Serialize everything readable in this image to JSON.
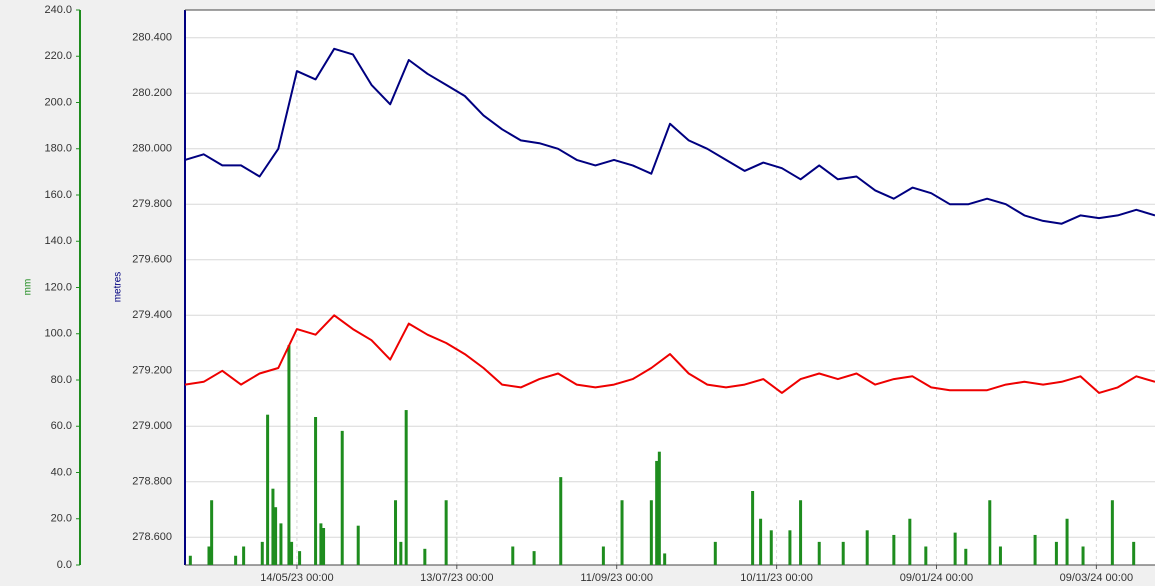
{
  "chart_data": {
    "type": "combo",
    "ylabel": "mm",
    "y2label": "metres",
    "ylim": [
      0,
      240
    ],
    "yticks": [
      {
        "value": 0,
        "label": "0.0"
      },
      {
        "value": 20,
        "label": "20.0"
      },
      {
        "value": 40,
        "label": "40.0"
      },
      {
        "value": 60,
        "label": "60.0"
      },
      {
        "value": 80,
        "label": "80.0"
      },
      {
        "value": 100,
        "label": "100.0"
      },
      {
        "value": 120,
        "label": "120.0"
      },
      {
        "value": 140,
        "label": "140.0"
      },
      {
        "value": 160,
        "label": "160.0"
      },
      {
        "value": 180,
        "label": "180.0"
      },
      {
        "value": 200,
        "label": "200.0"
      },
      {
        "value": 220,
        "label": "220.0"
      },
      {
        "value": 240,
        "label": "240.0"
      }
    ],
    "y2lim": [
      278.5,
      280.5
    ],
    "y2ticks": [
      {
        "value": 278.6,
        "label": "278.600"
      },
      {
        "value": 278.8,
        "label": "278.800"
      },
      {
        "value": 279.0,
        "label": "279.000"
      },
      {
        "value": 279.2,
        "label": "279.200"
      },
      {
        "value": 279.4,
        "label": "279.400"
      },
      {
        "value": 279.6,
        "label": "279.600"
      },
      {
        "value": 279.8,
        "label": "279.800"
      },
      {
        "value": 280.0,
        "label": "280.000"
      },
      {
        "value": 280.2,
        "label": "280.200"
      },
      {
        "value": 280.4,
        "label": "280.400"
      }
    ],
    "xlim": [
      "2023-04-02",
      "2024-03-31"
    ],
    "xticks": [
      {
        "value": "2023-05-14",
        "label": "14/05/23 00:00"
      },
      {
        "value": "2023-07-13",
        "label": "13/07/23 00:00"
      },
      {
        "value": "2023-09-11",
        "label": "11/09/23 00:00"
      },
      {
        "value": "2023-11-10",
        "label": "10/11/23 00:00"
      },
      {
        "value": "2024-01-09",
        "label": "09/01/24 00:00"
      },
      {
        "value": "2024-03-09",
        "label": "09/03/24 00:00"
      }
    ],
    "grid": true,
    "x": [
      "2023-04-02",
      "2023-04-09",
      "2023-04-16",
      "2023-04-23",
      "2023-04-30",
      "2023-05-07",
      "2023-05-14",
      "2023-05-21",
      "2023-05-28",
      "2023-06-04",
      "2023-06-11",
      "2023-06-18",
      "2023-06-25",
      "2023-07-02",
      "2023-07-09",
      "2023-07-16",
      "2023-07-23",
      "2023-07-30",
      "2023-08-06",
      "2023-08-13",
      "2023-08-20",
      "2023-08-27",
      "2023-09-03",
      "2023-09-10",
      "2023-09-17",
      "2023-09-24",
      "2023-10-01",
      "2023-10-08",
      "2023-10-15",
      "2023-10-22",
      "2023-10-29",
      "2023-11-05",
      "2023-11-12",
      "2023-11-19",
      "2023-11-26",
      "2023-12-03",
      "2023-12-10",
      "2023-12-17",
      "2023-12-24",
      "2023-12-31",
      "2024-01-07",
      "2024-01-14",
      "2024-01-21",
      "2024-01-28",
      "2024-02-04",
      "2024-02-11",
      "2024-02-18",
      "2024-02-25",
      "2024-03-03",
      "2024-03-10",
      "2024-03-17",
      "2024-03-24",
      "2024-03-31"
    ],
    "series": [
      {
        "type": "line",
        "axis": "y2",
        "color": "#000080",
        "values": [
          279.96,
          279.98,
          279.94,
          279.94,
          279.9,
          280.0,
          280.28,
          280.25,
          280.36,
          280.34,
          280.23,
          280.16,
          280.32,
          280.27,
          280.23,
          280.19,
          280.12,
          280.07,
          280.03,
          280.02,
          280.0,
          279.96,
          279.94,
          279.96,
          279.94,
          279.91,
          280.09,
          280.03,
          280.0,
          279.96,
          279.92,
          279.95,
          279.93,
          279.89,
          279.94,
          279.89,
          279.9,
          279.85,
          279.82,
          279.86,
          279.84,
          279.8,
          279.8,
          279.82,
          279.8,
          279.76,
          279.74,
          279.73,
          279.76,
          279.75,
          279.76,
          279.78,
          279.76
        ]
      },
      {
        "type": "line",
        "axis": "y2",
        "color": "#ee0000",
        "values": [
          279.15,
          279.16,
          279.2,
          279.15,
          279.19,
          279.21,
          279.35,
          279.33,
          279.4,
          279.35,
          279.31,
          279.24,
          279.37,
          279.33,
          279.3,
          279.26,
          279.21,
          279.15,
          279.14,
          279.17,
          279.19,
          279.15,
          279.14,
          279.15,
          279.17,
          279.21,
          279.26,
          279.19,
          279.15,
          279.14,
          279.15,
          279.17,
          279.12,
          279.17,
          279.19,
          279.17,
          279.19,
          279.15,
          279.17,
          279.18,
          279.14,
          279.13,
          279.13,
          279.13,
          279.15,
          279.16,
          279.15,
          279.16,
          279.18,
          279.12,
          279.14,
          279.18,
          279.16
        ]
      },
      {
        "type": "bar",
        "axis": "y",
        "color": "#1e8c1e",
        "x": [
          "2023-04-04",
          "2023-04-11",
          "2023-04-12",
          "2023-04-21",
          "2023-04-24",
          "2023-05-01",
          "2023-05-03",
          "2023-05-05",
          "2023-05-06",
          "2023-05-08",
          "2023-05-11",
          "2023-05-12",
          "2023-05-15",
          "2023-05-21",
          "2023-05-23",
          "2023-05-24",
          "2023-05-31",
          "2023-06-06",
          "2023-06-20",
          "2023-06-22",
          "2023-06-24",
          "2023-07-01",
          "2023-07-09",
          "2023-08-03",
          "2023-08-11",
          "2023-08-21",
          "2023-09-06",
          "2023-09-13",
          "2023-09-24",
          "2023-09-26",
          "2023-09-27",
          "2023-09-29",
          "2023-10-18",
          "2023-11-01",
          "2023-11-04",
          "2023-11-08",
          "2023-11-15",
          "2023-11-19",
          "2023-11-26",
          "2023-12-05",
          "2023-12-14",
          "2023-12-24",
          "2023-12-30",
          "2024-01-05",
          "2024-01-16",
          "2024-01-20",
          "2024-01-29",
          "2024-02-02",
          "2024-02-15",
          "2024-02-23",
          "2024-02-27",
          "2024-03-04",
          "2024-03-15",
          "2024-03-23"
        ],
        "values": [
          4,
          8,
          28,
          4,
          8,
          10,
          65,
          33,
          25,
          18,
          95,
          10,
          6,
          64,
          18,
          16,
          58,
          17,
          28,
          10,
          67,
          7,
          28,
          8,
          6,
          38,
          8,
          28,
          28,
          45,
          49,
          5,
          10,
          32,
          20,
          15,
          15,
          28,
          10,
          10,
          15,
          13,
          20,
          8,
          14,
          7,
          28,
          8,
          13,
          10,
          20,
          8,
          28,
          10
        ]
      }
    ]
  }
}
